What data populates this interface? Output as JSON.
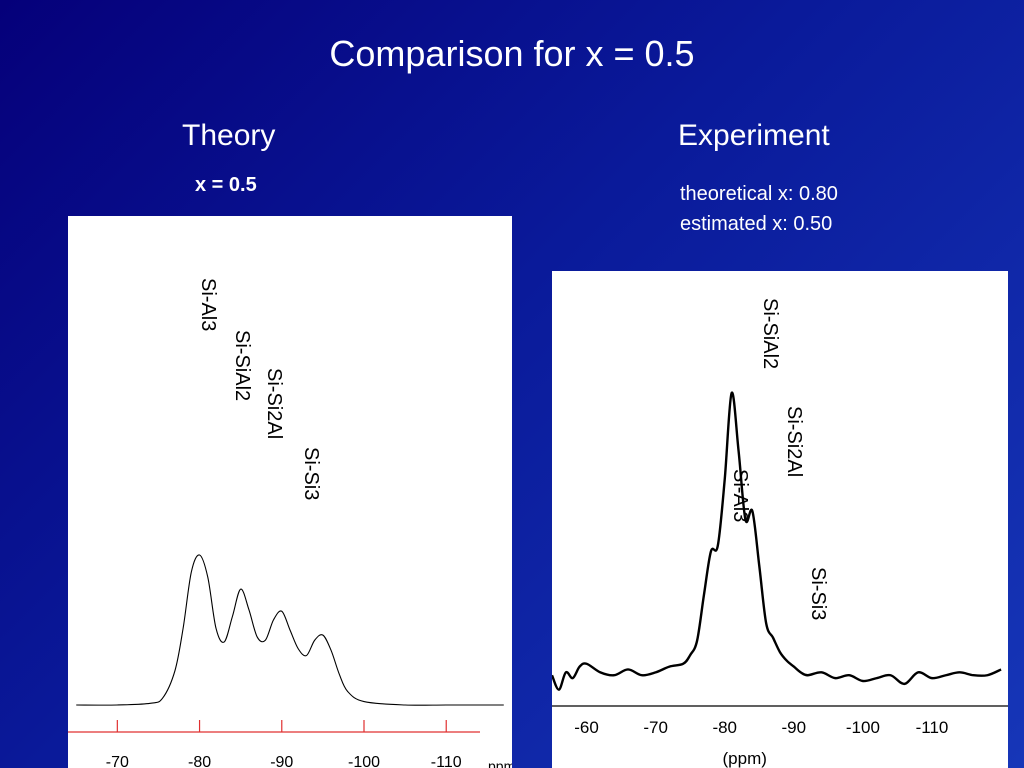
{
  "slide": {
    "title": "Comparison for x = 0.5",
    "theory_heading": "Theory",
    "theory_subtitle": "x = 0.5",
    "experiment_heading": "Experiment",
    "experiment_notes": [
      "theoretical x: 0.80",
      "estimated x: 0.50"
    ],
    "background_colors": [
      "#05007a",
      "#1636b8"
    ]
  },
  "chart_data": [
    {
      "type": "line",
      "name": "theory",
      "x_axis": {
        "reversed": true,
        "xlim": [
          -64,
          -118
        ],
        "ticks": [
          -70,
          -80,
          -90,
          -100,
          -110
        ],
        "tick_labels": [
          "-70",
          "-80",
          "-90",
          "-100",
          "-110"
        ],
        "unit_label": "ppm",
        "color": "#e03030"
      },
      "ylim": [
        0,
        1
      ],
      "y_axis_shown": false,
      "grid": false,
      "series": [
        {
          "x": [
            -65,
            -70,
            -74,
            -75.5,
            -77,
            -78,
            -79,
            -80,
            -81,
            -82,
            -83,
            -84,
            -85,
            -86,
            -87,
            -88,
            -89,
            -90,
            -91,
            -92,
            -93,
            -94,
            -95,
            -96,
            -97,
            -98,
            -100,
            -105,
            -110,
            -115,
            -117
          ],
          "y": [
            0,
            0,
            0.01,
            0.04,
            0.2,
            0.45,
            0.78,
            0.88,
            0.75,
            0.45,
            0.37,
            0.52,
            0.68,
            0.56,
            0.4,
            0.38,
            0.5,
            0.55,
            0.44,
            0.33,
            0.29,
            0.38,
            0.41,
            0.32,
            0.18,
            0.08,
            0.02,
            0,
            0,
            0,
            0
          ]
        }
      ],
      "peak_labels": [
        {
          "label": "Si-Al3",
          "x": -80
        },
        {
          "label": "Si-SiAl2",
          "x": -82
        },
        {
          "label": "Si-Si2Al",
          "x": -84.5
        },
        {
          "label": "Si-Si3",
          "x": -86.5
        }
      ]
    },
    {
      "type": "line",
      "name": "experiment",
      "x_axis": {
        "reversed": true,
        "xlim": [
          -55,
          -121
        ],
        "ticks": [
          -60,
          -70,
          -80,
          -90,
          -100,
          -110
        ],
        "tick_labels": [
          "-60",
          "-70",
          "-80",
          "-90",
          "-100",
          "-110"
        ],
        "xlabel": "(ppm)"
      },
      "ylim": [
        0,
        1
      ],
      "y_axis_shown": false,
      "grid": false,
      "series": [
        {
          "x": [
            -55,
            -56,
            -57,
            -58,
            -59,
            -60,
            -62,
            -64,
            -66,
            -68,
            -70,
            -72,
            -74,
            -75,
            -76,
            -77,
            -78,
            -79,
            -80,
            -81,
            -82,
            -83,
            -84,
            -85,
            -86,
            -87,
            -88,
            -89,
            -90,
            -91,
            -92,
            -94,
            -96,
            -98,
            -100,
            -102,
            -104,
            -106,
            -108,
            -110,
            -112,
            -114,
            -116,
            -118,
            -120
          ],
          "y": [
            0.02,
            -0.03,
            0.03,
            0.01,
            0.05,
            0.06,
            0.03,
            0.02,
            0.04,
            0.02,
            0.03,
            0.05,
            0.06,
            0.09,
            0.14,
            0.3,
            0.45,
            0.47,
            0.7,
            1.0,
            0.8,
            0.56,
            0.59,
            0.4,
            0.2,
            0.15,
            0.1,
            0.07,
            0.05,
            0.03,
            0.02,
            0.03,
            0.01,
            0.02,
            0.0,
            0.01,
            0.02,
            -0.01,
            0.03,
            0.01,
            0.02,
            0.03,
            0.02,
            0.02,
            0.04
          ]
        }
      ],
      "peak_labels": [
        {
          "label": "Si-SiAl2",
          "x": -81
        },
        {
          "label": "Si-Si2Al",
          "x": -84
        },
        {
          "label": "Si-Al3",
          "x": -78.5
        },
        {
          "label": "Si-Si3",
          "x": -87
        }
      ]
    }
  ]
}
